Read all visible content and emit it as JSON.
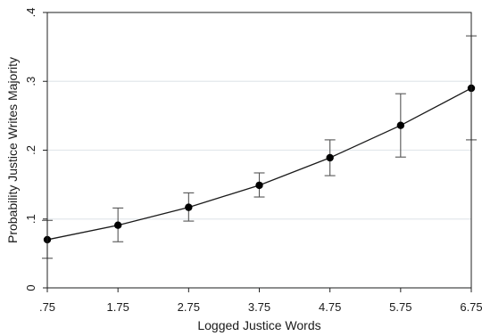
{
  "chart_data": {
    "type": "line",
    "title": "",
    "xlabel": "Logged Justice Words",
    "ylabel": "Probability Justice Writes Majority",
    "x": [
      0.75,
      1.75,
      2.75,
      3.75,
      4.75,
      5.75,
      6.75
    ],
    "x_tick_labels": [
      ".75",
      "1.75",
      "2.75",
      "3.75",
      "4.75",
      "5.75",
      "6.75"
    ],
    "y_ticks": [
      0,
      0.1,
      0.2,
      0.3,
      0.4
    ],
    "y_tick_labels": [
      "0",
      ".1",
      ".2",
      ".3",
      ".4"
    ],
    "xlim": [
      0.75,
      6.75
    ],
    "ylim": [
      0,
      0.4
    ],
    "grid": "horizontal",
    "legend": "none",
    "series": [
      {
        "values": [
          0.07,
          0.091,
          0.117,
          0.149,
          0.189,
          0.236,
          0.29
        ],
        "ci_lower": [
          0.043,
          0.067,
          0.097,
          0.132,
          0.163,
          0.19,
          0.215
        ],
        "ci_upper": [
          0.098,
          0.116,
          0.138,
          0.167,
          0.215,
          0.282,
          0.366
        ]
      }
    ],
    "colors": {
      "line": "#1a1a1a",
      "marker": "#000000",
      "error_bar": "#555555",
      "grid": "#e3e8ec",
      "frame": "#222222"
    }
  }
}
